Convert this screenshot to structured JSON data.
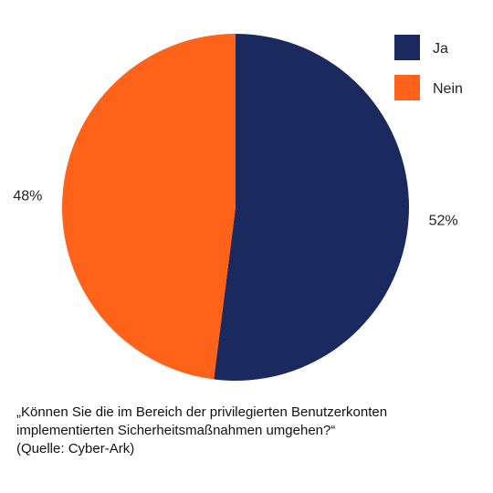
{
  "chart_data": {
    "type": "pie",
    "categories": [
      "Ja",
      "Nein"
    ],
    "values": [
      52,
      48
    ],
    "value_labels": [
      "52%",
      "48%"
    ],
    "colors": [
      "#1a2a5e",
      "#ff6319"
    ],
    "legend_placement": "top-right",
    "start_angle_deg": 0,
    "direction": "clockwise"
  },
  "caption": {
    "line1": "„Können Sie die im Bereich der privilegierten Benutzerkonten",
    "line2": "implementierten Sicherheitsmaßnahmen umgehen?“",
    "source": "(Quelle: Cyber-Ark)"
  }
}
